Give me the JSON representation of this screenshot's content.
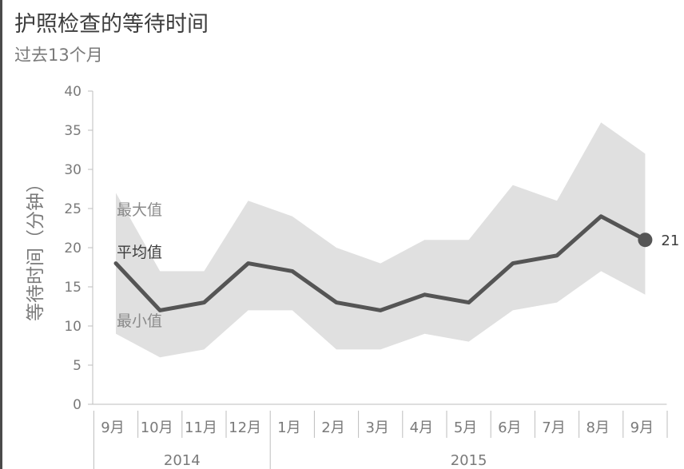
{
  "title": "护照检查的等待时间",
  "subtitle": "过去13个月",
  "chart_data": {
    "type": "area",
    "title": "护照检查的等待时间",
    "subtitle": "过去13个月",
    "ylabel": "等待时间（分钟）",
    "xlabel": "",
    "ylim": [
      0,
      40
    ],
    "yticks": [
      0,
      5,
      10,
      15,
      20,
      25,
      30,
      35,
      40
    ],
    "categories": [
      "9月",
      "10月",
      "11月",
      "12月",
      "1月",
      "2月",
      "3月",
      "4月",
      "5月",
      "6月",
      "7月",
      "8月",
      "9月"
    ],
    "year_groups": [
      {
        "label": "2014",
        "start": 0,
        "end": 3
      },
      {
        "label": "2015",
        "start": 4,
        "end": 12
      }
    ],
    "series": [
      {
        "name": "最大值",
        "values": [
          27,
          17,
          17,
          26,
          24,
          20,
          18,
          21,
          21,
          28,
          26,
          36,
          32
        ]
      },
      {
        "name": "平均值",
        "values": [
          18,
          12,
          13,
          18,
          17,
          13,
          12,
          14,
          13,
          18,
          19,
          24,
          21
        ]
      },
      {
        "name": "最小值",
        "values": [
          9,
          6,
          7,
          12,
          12,
          7,
          7,
          9,
          8,
          12,
          13,
          17,
          14
        ]
      }
    ],
    "end_label": "21",
    "grid": false,
    "colors": {
      "band": "#e0e0e0",
      "line": "#555555",
      "axis": "#bdbdbd",
      "text": "#7a7a7a",
      "series_label_dark": "#3d3d3d"
    }
  }
}
